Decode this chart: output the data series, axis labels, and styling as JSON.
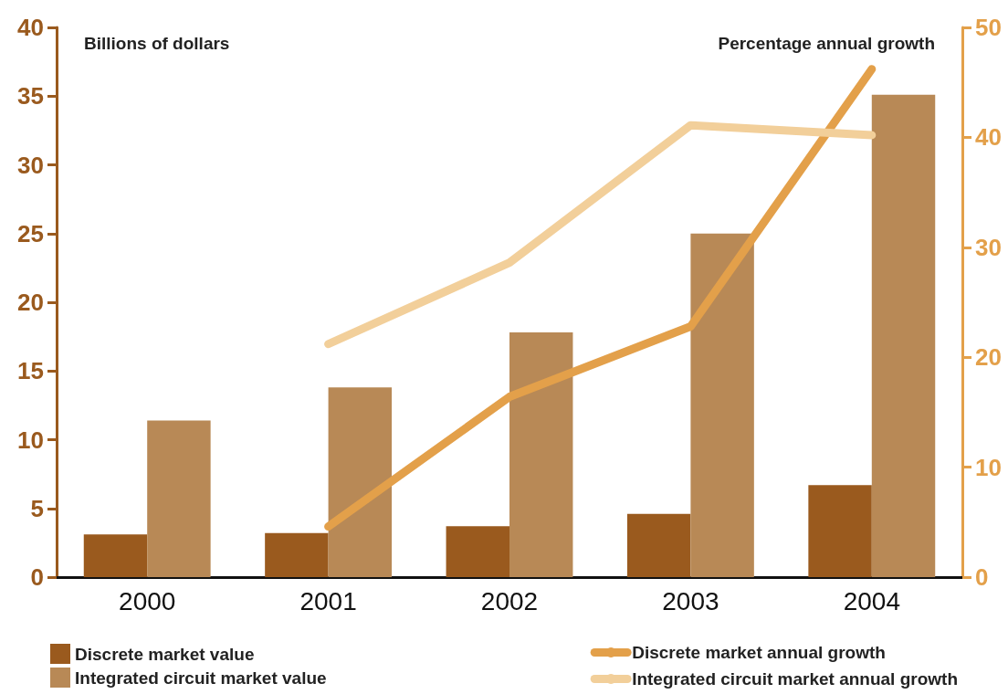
{
  "chart_data": {
    "type": "bar",
    "categories": [
      "2000",
      "2001",
      "2002",
      "2003",
      "2004"
    ],
    "ylabel": "Billions of dollars",
    "y2label": "Percentage annual growth",
    "ylim": [
      0,
      40
    ],
    "yticks": [
      0,
      5,
      10,
      15,
      20,
      25,
      30,
      35,
      40
    ],
    "y2lim": [
      0,
      50
    ],
    "y2ticks": [
      0,
      10,
      20,
      30,
      40,
      50
    ],
    "grid": false,
    "legend": "bottom",
    "line_style": "solid",
    "marker": "none",
    "series": [
      {
        "name": "Discrete market value",
        "color": "#9a5a1e",
        "values": [
          3.1,
          3.2,
          3.7,
          4.6,
          6.7
        ]
      },
      {
        "name": "Integrated circuit market value",
        "color": "#b88956",
        "values": [
          11.4,
          13.8,
          17.8,
          25.0,
          35.1
        ]
      },
      {
        "name": "Discrete market annual growth",
        "type": "line",
        "axis": "y2",
        "color": "#e3a04a",
        "values": [
          null,
          4.6,
          16.4,
          22.8,
          46.2
        ]
      },
      {
        "name": "Integrated circuit market annual growth",
        "type": "line",
        "axis": "y2",
        "color": "#f2cf9a",
        "values": [
          null,
          21.2,
          28.6,
          41.1,
          40.2
        ]
      }
    ]
  }
}
